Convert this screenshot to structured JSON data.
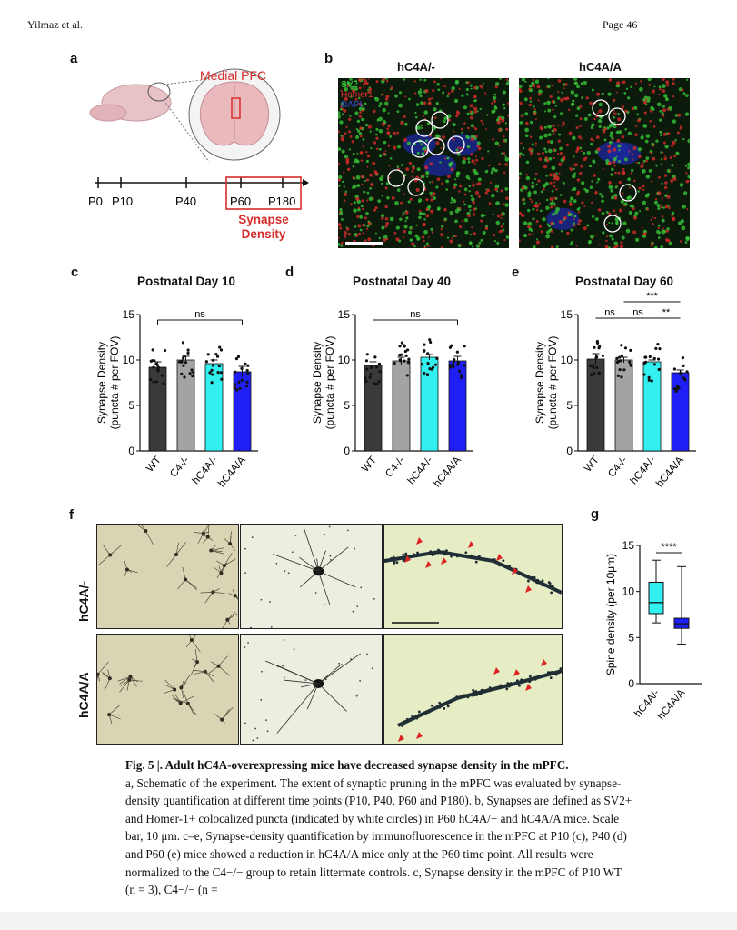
{
  "header": {
    "left": "Yilmaz et al.",
    "right": "Page 46"
  },
  "panel_a": {
    "label": "a",
    "region": "Medial PFC",
    "timeline": [
      "P0",
      "P10",
      "P40",
      "P60",
      "P180"
    ],
    "box_label_1": "Synapse",
    "box_label_2": "Density"
  },
  "panel_b": {
    "label": "b",
    "titles": [
      "hC4A/-",
      "hC4A/A"
    ],
    "legend": [
      "SV2",
      "Homer1",
      "DAPI"
    ]
  },
  "chart_data": [
    {
      "panel": "c",
      "type": "bar",
      "title": "Postnatal Day 10",
      "ylabel": "Synapse Density (puncta # per FOV)",
      "categories": [
        "WT",
        "C4-/-",
        "hC4A/-",
        "hC4A/A"
      ],
      "values": [
        9.2,
        10.0,
        9.6,
        8.7
      ],
      "errors": [
        0.6,
        0.4,
        0.4,
        0.6
      ],
      "colors": [
        "#3a3a3a",
        "#a3a3a3",
        "#33f0f0",
        "#1f1ff5"
      ],
      "ylim": [
        0,
        15
      ],
      "yticks": [
        0,
        5,
        10,
        15
      ],
      "annotations": [
        {
          "text": "ns",
          "from": 0,
          "to": 3
        }
      ]
    },
    {
      "panel": "d",
      "type": "bar",
      "title": "Postnatal Day 40",
      "ylabel": "Synapse Density (puncta # per FOV)",
      "categories": [
        "WT",
        "C4-/-",
        "hC4A/-",
        "hC4A/A"
      ],
      "values": [
        9.4,
        9.9,
        10.3,
        9.9
      ],
      "errors": [
        0.4,
        0.4,
        0.3,
        0.5
      ],
      "colors": [
        "#3a3a3a",
        "#a3a3a3",
        "#33f0f0",
        "#1f1ff5"
      ],
      "ylim": [
        0,
        15
      ],
      "yticks": [
        0,
        5,
        10,
        15
      ],
      "annotations": [
        {
          "text": "ns",
          "from": 0,
          "to": 3
        }
      ]
    },
    {
      "panel": "e",
      "type": "bar",
      "title": "Postnatal Day 60",
      "ylabel": "Synapse Density (puncta # per FOV)",
      "categories": [
        "WT",
        "C4-/-",
        "hC4A/-",
        "hC4A/A"
      ],
      "values": [
        10.1,
        10.0,
        9.8,
        8.6
      ],
      "errors": [
        0.6,
        0.3,
        0.2,
        0.3
      ],
      "colors": [
        "#3a3a3a",
        "#a3a3a3",
        "#33f0f0",
        "#1f1ff5"
      ],
      "ylim": [
        0,
        15
      ],
      "yticks": [
        0,
        5,
        10,
        15
      ],
      "annotations": [
        {
          "text": "ns",
          "from": 0,
          "to": 1
        },
        {
          "text": "ns",
          "from": 1,
          "to": 2
        },
        {
          "text": "**",
          "from": 2,
          "to": 3
        },
        {
          "text": "***",
          "from": 1,
          "to": 3
        }
      ]
    },
    {
      "panel": "g",
      "type": "box",
      "ylabel": "Spine density (per 10μm)",
      "categories": [
        "hC4A/-",
        "hC4A/A"
      ],
      "boxes": [
        {
          "min": 6.6,
          "q1": 7.6,
          "median": 8.8,
          "q3": 11.0,
          "max": 13.4
        },
        {
          "min": 4.3,
          "q1": 6.0,
          "median": 6.5,
          "q3": 7.1,
          "max": 12.7
        }
      ],
      "colors": [
        "#33f0f0",
        "#1f1ff5"
      ],
      "ylim": [
        0,
        15
      ],
      "yticks": [
        0,
        5,
        10,
        15
      ],
      "annotations": [
        {
          "text": "****",
          "from": 0,
          "to": 1
        }
      ]
    }
  ],
  "panel_labels": {
    "c": "c",
    "d": "d",
    "e": "e",
    "f": "f",
    "g": "g"
  },
  "panel_f": {
    "rows": [
      "hC4A/-",
      "hC4A/A"
    ]
  },
  "caption": {
    "title": "Fig. 5 |. Adult hC4A-overexpressing mice have decreased synapse density in the mPFC.",
    "paragraph": "a, Schematic of the experiment. The extent of synaptic pruning in the mPFC was evaluated by synapse-density quantification at different time points (P10, P40, P60 and P180). b, Synapses are defined as SV2+ and Homer-1+ colocalized puncta (indicated by white circles) in P60 hC4A/− and hC4A/A mice. Scale bar, 10 μm. c–e, Synapse-density quantification by immunofluorescence in the mPFC at P10 (c), P40 (d) and P60 (e) mice showed a reduction in hC4A/A mice only at the P60 time point. All results were normalized to the C4−/− group to retain littermate controls. c, Synapse density in the mPFC of P10 WT (n = 3), C4−/− (n ="
  }
}
